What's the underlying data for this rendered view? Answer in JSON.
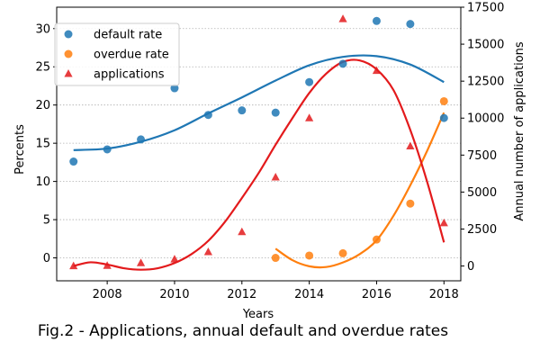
{
  "caption": "Fig.2 - Applications, annual default and overdue rates",
  "chart_data": {
    "type": "scatter",
    "xlabel": "Years",
    "ylabel_left": "Percents",
    "ylabel_right": "Annual number of applications",
    "xlim": [
      2006.5,
      2018.5
    ],
    "ylim_left": [
      -3,
      32.8
    ],
    "ylim_right": [
      -1000,
      17500
    ],
    "x_ticks": [
      2008,
      2010,
      2012,
      2014,
      2016,
      2018
    ],
    "y_ticks_left": [
      0,
      5,
      10,
      15,
      20,
      25,
      30
    ],
    "y_ticks_right": [
      0,
      2500,
      5000,
      7500,
      10000,
      12500,
      15000,
      17500
    ],
    "grid": "horizontal dotted",
    "legend_position": "upper-left",
    "series": [
      {
        "name": "default rate",
        "axis": "left",
        "marker": "circle",
        "color": "#1f77b4",
        "x": [
          2007,
          2008,
          2009,
          2010,
          2011,
          2012,
          2013,
          2014,
          2015,
          2016,
          2017,
          2018
        ],
        "y": [
          12.6,
          14.2,
          15.5,
          22.2,
          18.7,
          19.3,
          19.0,
          23.0,
          25.4,
          31.0,
          30.6,
          18.3
        ],
        "trend": {
          "x": [
            2007,
            2008,
            2009,
            2010,
            2011,
            2012,
            2013,
            2014,
            2015,
            2016,
            2017,
            2018
          ],
          "y": [
            14.1,
            14.3,
            15.2,
            16.7,
            18.9,
            21.0,
            23.2,
            25.2,
            26.3,
            26.4,
            25.3,
            23.0
          ]
        }
      },
      {
        "name": "overdue rate",
        "axis": "left",
        "marker": "circle",
        "color": "#ff7f0e",
        "x": [
          2013,
          2014,
          2015,
          2016,
          2017,
          2018
        ],
        "y": [
          0.0,
          0.3,
          0.6,
          2.4,
          7.1,
          20.5
        ],
        "trend": {
          "x": [
            2013,
            2013.5,
            2014,
            2014.5,
            2015,
            2015.5,
            2016,
            2016.5,
            2017,
            2017.5,
            2018
          ],
          "y": [
            1.2,
            -0.3,
            -1.1,
            -1.2,
            -0.6,
            0.5,
            2.3,
            5.5,
            9.5,
            14.0,
            19.0
          ]
        }
      },
      {
        "name": "applications",
        "axis": "right",
        "marker": "triangle",
        "color": "#e31a1c",
        "x": [
          2007,
          2008,
          2009,
          2010,
          2011,
          2012,
          2013,
          2014,
          2015,
          2016,
          2017,
          2018
        ],
        "y": [
          0,
          20,
          200,
          450,
          950,
          2300,
          6000,
          10000,
          16700,
          13200,
          8100,
          2900
        ],
        "trend": {
          "x": [
            2007,
            2007.5,
            2008,
            2008.5,
            2009,
            2009.5,
            2010,
            2010.5,
            2011,
            2011.5,
            2012,
            2012.5,
            2013,
            2013.5,
            2014,
            2014.5,
            2015,
            2015.5,
            2016,
            2016.5,
            2017,
            2017.5,
            2018
          ],
          "y": [
            0,
            250,
            100,
            -150,
            -250,
            -150,
            200,
            800,
            1700,
            3000,
            4600,
            6300,
            8200,
            10000,
            11700,
            13000,
            13800,
            13900,
            13300,
            11900,
            9200,
            5700,
            1600
          ]
        }
      }
    ]
  }
}
